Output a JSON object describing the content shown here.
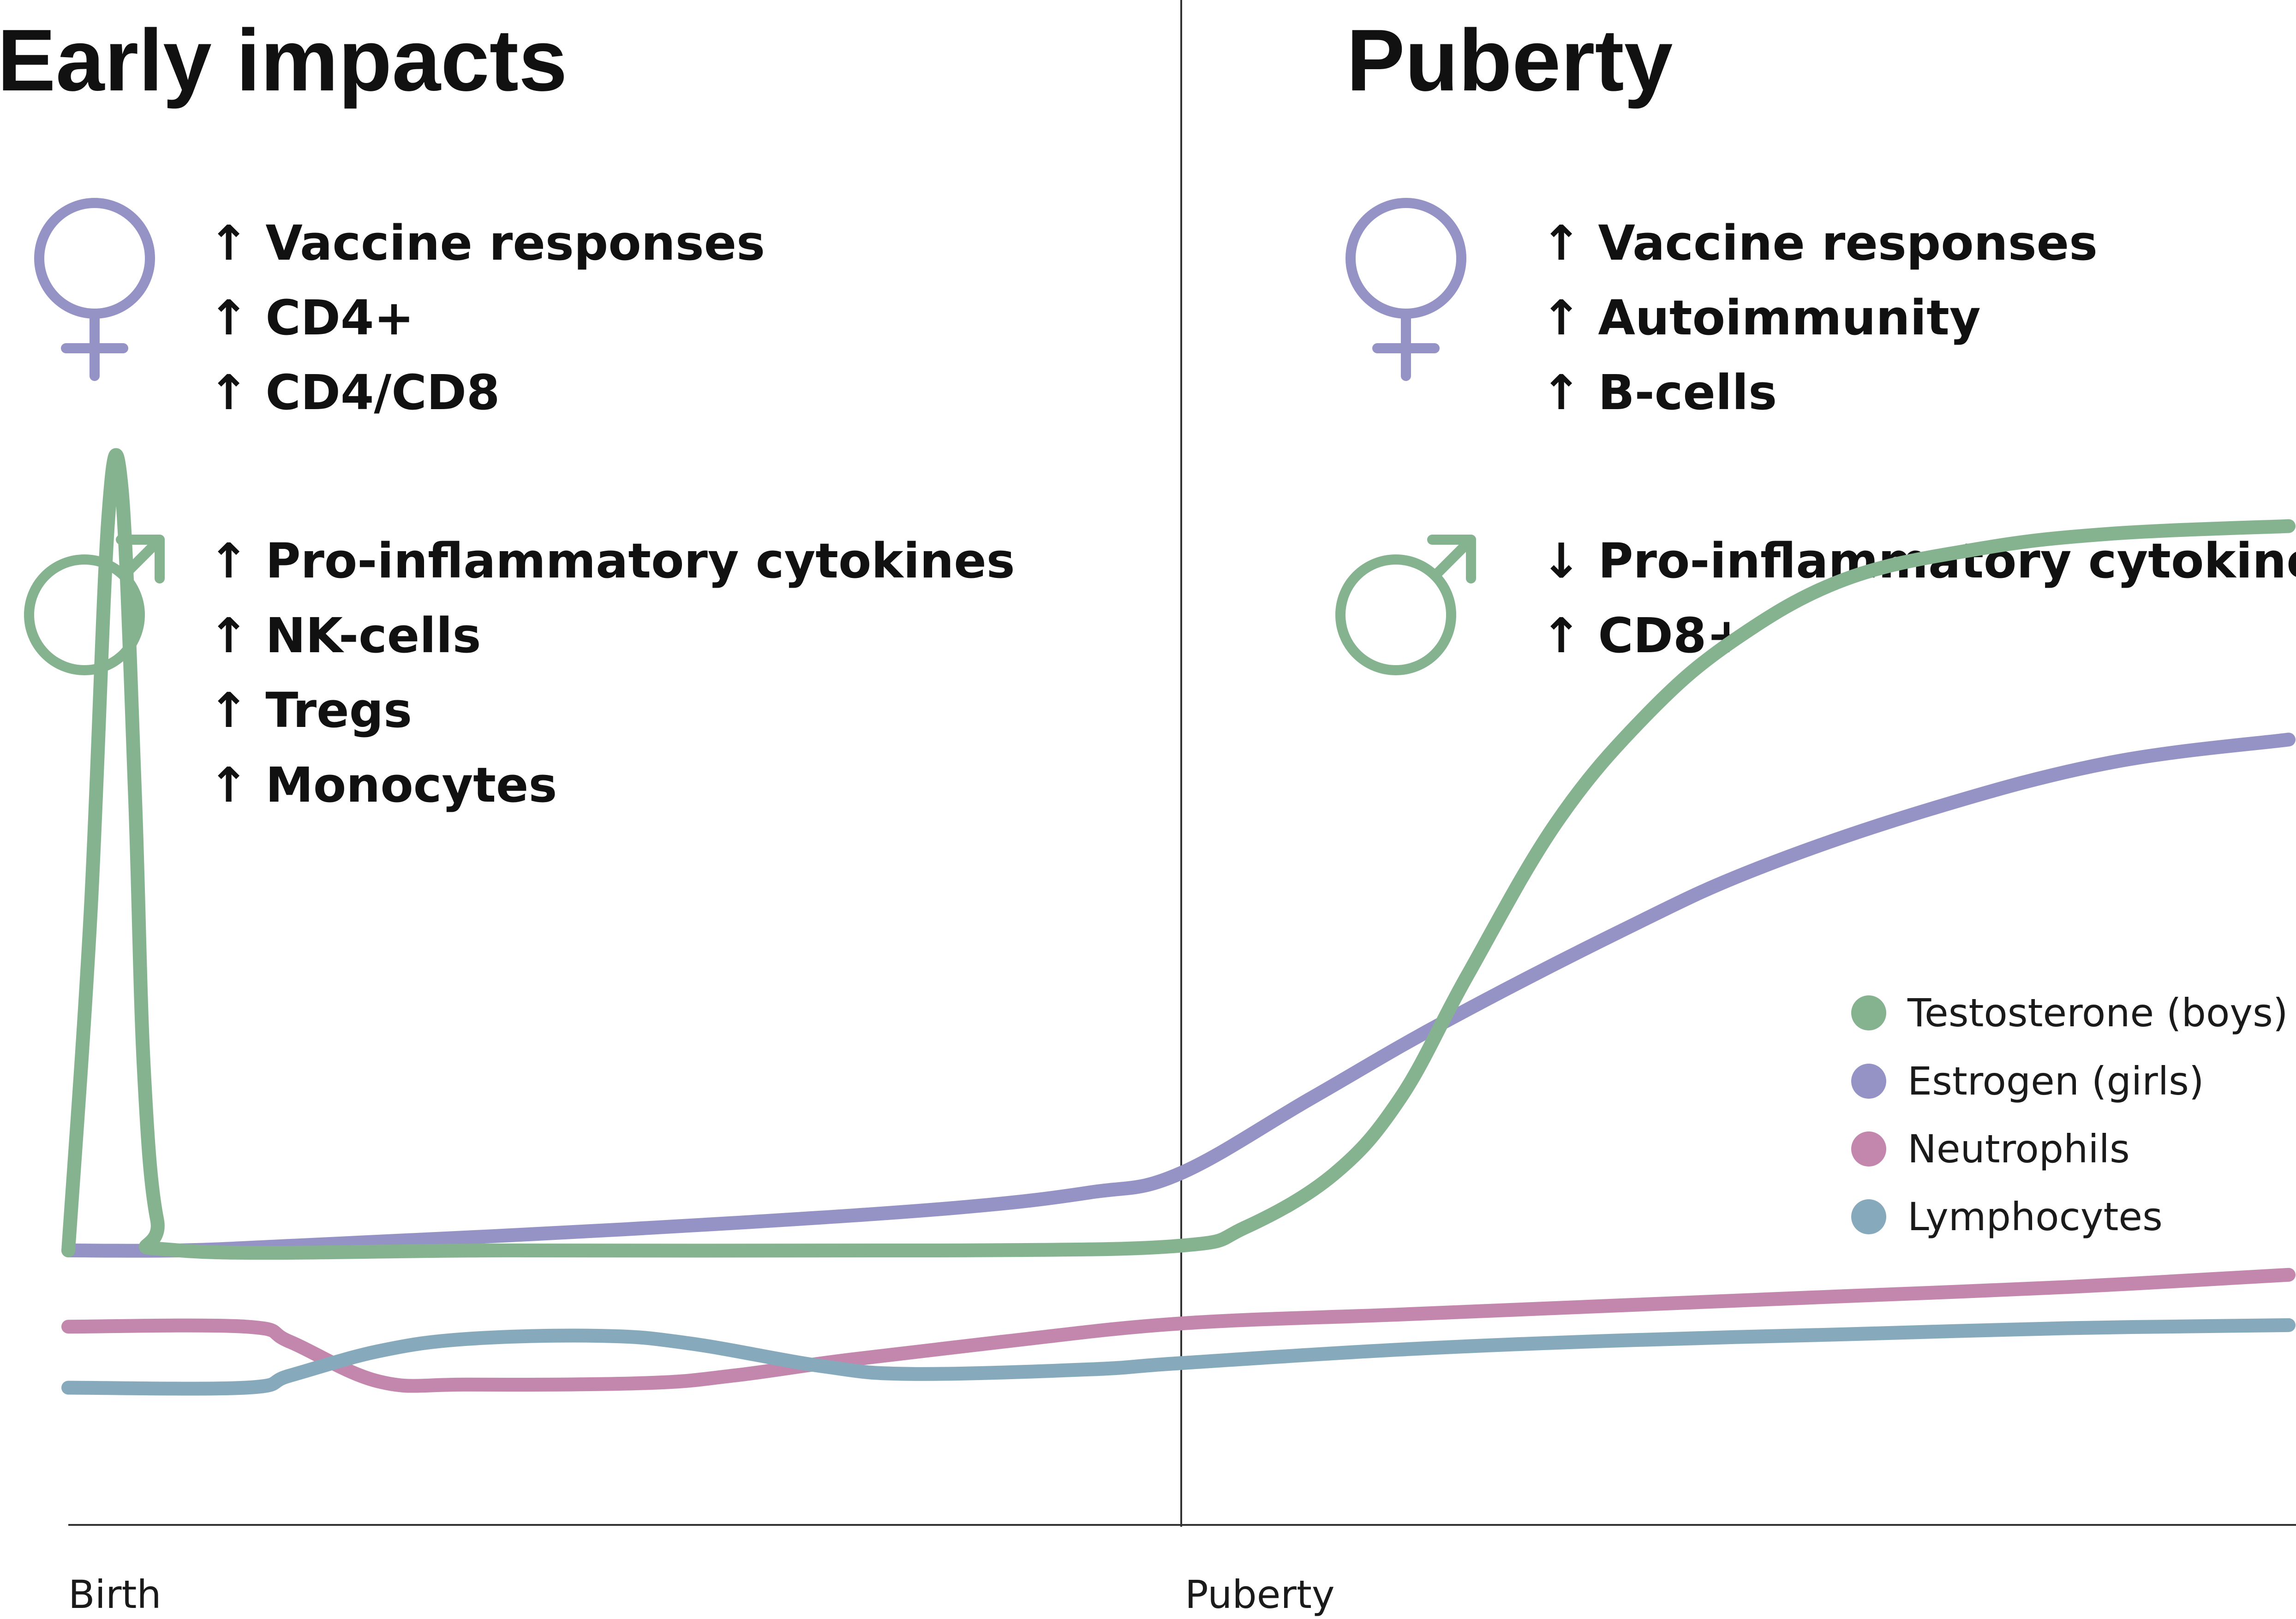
{
  "panels": [
    {
      "heading": "Early impacts",
      "female_effects": [
        "↑ Vaccine responses",
        "↑ CD4+",
        "↑ CD4/CD8"
      ],
      "male_effects": [
        "↑ Pro-inflammatory cytokines",
        "↑ NK-cells",
        "↑ Tregs",
        "↑ Monocytes"
      ]
    },
    {
      "heading": "Puberty",
      "female_effects": [
        "↑ Vaccine responses",
        "↑ Autoimmunity",
        "↑ B-cells"
      ],
      "male_effects": [
        "↓ Pro-inflammatory cytokines",
        "↑ CD8+"
      ]
    }
  ],
  "symbols": {
    "female": {
      "icon": "female-symbol-icon",
      "color": "#9592c6"
    },
    "male": {
      "icon": "male-symbol-icon",
      "color": "#86b38f"
    }
  },
  "legend": [
    {
      "label": "Testosterone (boys)",
      "color": "#86b38f"
    },
    {
      "label": "Estrogen (girls)",
      "color": "#9592c6"
    },
    {
      "label": "Neutrophils",
      "color": "#c386ac"
    },
    {
      "label": "Lymphocytes",
      "color": "#86aabc"
    }
  ],
  "axis": {
    "labels": [
      "Birth",
      "Puberty"
    ]
  },
  "chart_data": {
    "type": "line",
    "xlabel": "",
    "ylabel": "",
    "xlim": [
      0,
      100
    ],
    "ylim": [
      0,
      100
    ],
    "series": [
      {
        "name": "Testosterone (boys)",
        "color": "#86b38f",
        "points": [
          [
            0,
            18
          ],
          [
            1,
            40
          ],
          [
            1.8,
            66
          ],
          [
            2.4,
            68
          ],
          [
            3,
            48
          ],
          [
            3.4,
            30
          ],
          [
            4,
            20
          ],
          [
            5,
            18
          ],
          [
            20,
            18
          ],
          [
            40,
            18
          ],
          [
            50,
            18.3
          ],
          [
            53,
            19.5
          ],
          [
            57,
            23
          ],
          [
            60,
            28
          ],
          [
            63,
            36
          ],
          [
            67,
            46
          ],
          [
            71,
            53
          ],
          [
            75,
            58
          ],
          [
            80,
            62
          ],
          [
            86,
            64
          ],
          [
            92,
            65
          ],
          [
            100,
            65.5
          ]
        ]
      },
      {
        "name": "Estrogen (girls)",
        "color": "#9592c6",
        "points": [
          [
            0,
            18
          ],
          [
            5,
            18
          ],
          [
            10,
            18.3
          ],
          [
            20,
            19
          ],
          [
            30,
            19.8
          ],
          [
            40,
            20.8
          ],
          [
            46,
            21.8
          ],
          [
            50,
            23
          ],
          [
            56,
            28
          ],
          [
            62,
            33
          ],
          [
            70,
            39
          ],
          [
            76,
            43
          ],
          [
            84,
            47
          ],
          [
            92,
            50
          ],
          [
            100,
            51.5
          ]
        ]
      },
      {
        "name": "Neutrophils",
        "color": "#c386ac",
        "points": [
          [
            0,
            13
          ],
          [
            8,
            13
          ],
          [
            10,
            12
          ],
          [
            14,
            9.4
          ],
          [
            18,
            9.2
          ],
          [
            26,
            9.3
          ],
          [
            30,
            9.8
          ],
          [
            35,
            10.8
          ],
          [
            42,
            12
          ],
          [
            50,
            13.2
          ],
          [
            60,
            13.8
          ],
          [
            70,
            14.4
          ],
          [
            80,
            15
          ],
          [
            90,
            15.6
          ],
          [
            100,
            16.4
          ]
        ]
      },
      {
        "name": "Lymphocytes",
        "color": "#86aabc",
        "points": [
          [
            0,
            9
          ],
          [
            8,
            9
          ],
          [
            10,
            9.8
          ],
          [
            14,
            11.4
          ],
          [
            18,
            12.2
          ],
          [
            24,
            12.4
          ],
          [
            28,
            11.9
          ],
          [
            34,
            10.4
          ],
          [
            38,
            9.9
          ],
          [
            46,
            10.2
          ],
          [
            50,
            10.6
          ],
          [
            60,
            11.5
          ],
          [
            70,
            12.1
          ],
          [
            80,
            12.5
          ],
          [
            90,
            12.9
          ],
          [
            100,
            13.1
          ]
        ]
      }
    ],
    "x_ticks": [
      {
        "label": "Birth",
        "x": 0
      },
      {
        "label": "Puberty",
        "x": 50
      }
    ],
    "divider_x": 50,
    "legend_position": "right"
  }
}
